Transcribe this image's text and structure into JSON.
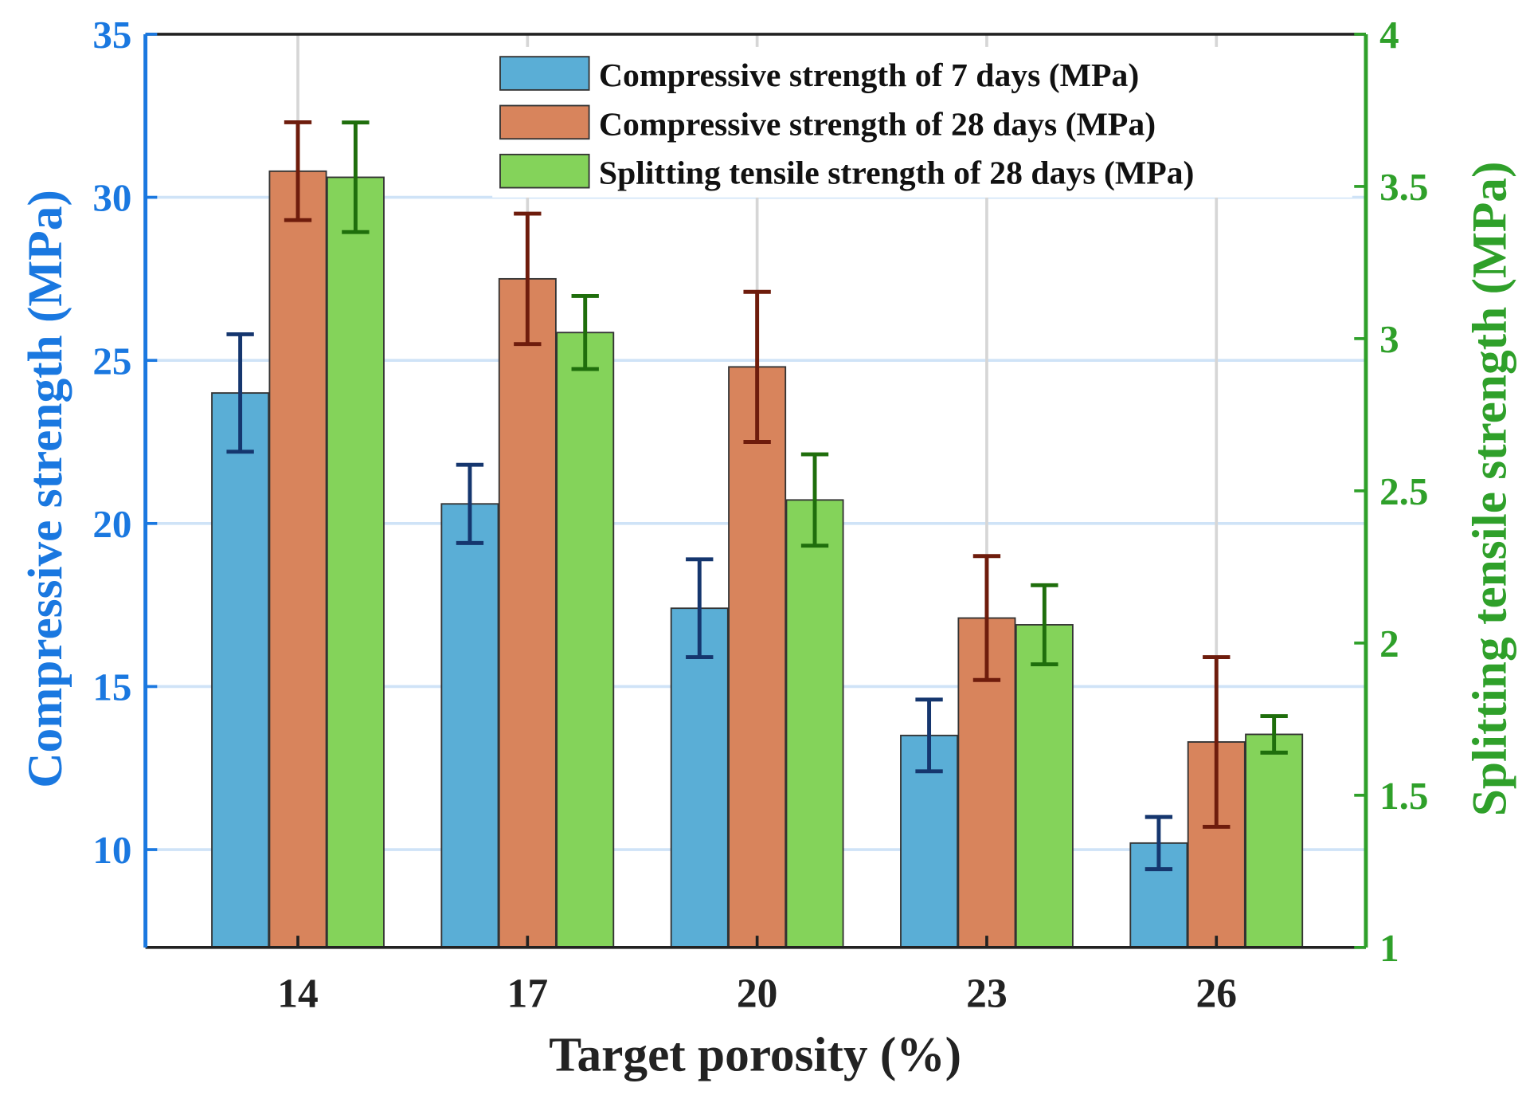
{
  "chart_data": {
    "type": "bar",
    "title": "",
    "xlabel": "Target porosity (%)",
    "ylabel": "Compressive strength (MPa)",
    "y2label": "Splitting tensile strength (MPa)",
    "categories": [
      "14",
      "17",
      "20",
      "23",
      "26"
    ],
    "ylim": [
      7,
      35
    ],
    "y2lim": [
      1,
      4
    ],
    "yticks": [
      10,
      15,
      20,
      25,
      30,
      35
    ],
    "y2ticks": [
      1,
      1.5,
      2,
      2.5,
      3,
      3.5,
      4
    ],
    "grid": true,
    "legend_position": "top-right",
    "series": [
      {
        "name": "Compressive strength of 7 days (MPa)",
        "axis": "left",
        "color": "#5aaed6",
        "error_color": "#15366e",
        "values": [
          24.0,
          20.6,
          17.4,
          13.5,
          10.2
        ],
        "err_high": [
          25.8,
          21.8,
          18.9,
          14.6,
          11.0
        ],
        "err_low": [
          22.2,
          19.4,
          15.9,
          12.4,
          9.4
        ]
      },
      {
        "name": "Compressive strength of 28 days (MPa)",
        "axis": "left",
        "color": "#d8845c",
        "error_color": "#6e1c0c",
        "values": [
          30.8,
          27.5,
          24.8,
          17.1,
          13.3
        ],
        "err_high": [
          32.3,
          29.5,
          27.1,
          19.0,
          15.9
        ],
        "err_low": [
          29.3,
          25.5,
          22.5,
          15.2,
          10.7
        ]
      },
      {
        "name": "Splitting tensile strength of 28 days (MPa)",
        "axis": "right",
        "color": "#84d35a",
        "error_color": "#1f6e0c",
        "values": [
          3.53,
          3.02,
          2.47,
          2.06,
          1.7
        ],
        "err_high": [
          3.71,
          3.14,
          2.62,
          2.19,
          1.76
        ],
        "err_low": [
          3.35,
          2.9,
          2.32,
          1.93,
          1.64
        ]
      }
    ],
    "left_axis_color": "#1a78e0",
    "right_axis_color": "#2fa02a"
  }
}
